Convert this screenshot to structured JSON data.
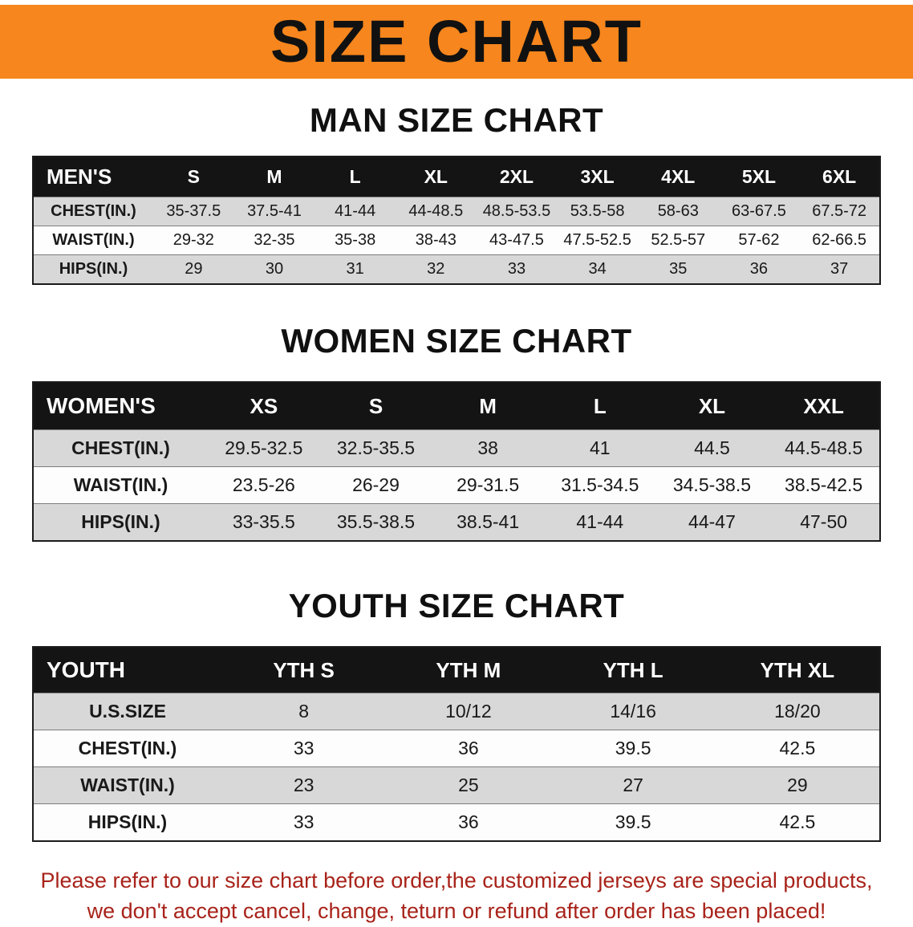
{
  "banner": {
    "title": "SIZE CHART",
    "bg_color": "#f6861d"
  },
  "sections": [
    {
      "id": "men",
      "heading": "MAN SIZE CHART",
      "table": {
        "header": [
          "MEN'S",
          "S",
          "M",
          "L",
          "XL",
          "2XL",
          "3XL",
          "4XL",
          "5XL",
          "6XL"
        ],
        "rows": [
          {
            "label": "CHEST(IN.)",
            "values": [
              "35-37.5",
              "37.5-41",
              "41-44",
              "44-48.5",
              "48.5-53.5",
              "53.5-58",
              "58-63",
              "63-67.5",
              "67.5-72"
            ]
          },
          {
            "label": "WAIST(IN.)",
            "values": [
              "29-32",
              "32-35",
              "35-38",
              "38-43",
              "43-47.5",
              "47.5-52.5",
              "52.5-57",
              "57-62",
              "62-66.5"
            ]
          },
          {
            "label": "HIPS(IN.)",
            "values": [
              "29",
              "30",
              "31",
              "32",
              "33",
              "34",
              "35",
              "36",
              "37"
            ]
          }
        ]
      }
    },
    {
      "id": "women",
      "heading": "WOMEN SIZE CHART",
      "table": {
        "header": [
          "WOMEN'S",
          "XS",
          "S",
          "M",
          "L",
          "XL",
          "XXL"
        ],
        "rows": [
          {
            "label": "CHEST(IN.)",
            "values": [
              "29.5-32.5",
              "32.5-35.5",
              "38",
              "41",
              "44.5",
              "44.5-48.5"
            ]
          },
          {
            "label": "WAIST(IN.)",
            "values": [
              "23.5-26",
              "26-29",
              "29-31.5",
              "31.5-34.5",
              "34.5-38.5",
              "38.5-42.5"
            ]
          },
          {
            "label": "HIPS(IN.)",
            "values": [
              "33-35.5",
              "35.5-38.5",
              "38.5-41",
              "41-44",
              "44-47",
              "47-50"
            ]
          }
        ]
      }
    },
    {
      "id": "youth",
      "heading": "YOUTH SIZE CHART",
      "table": {
        "header": [
          "YOUTH",
          "YTH S",
          "YTH M",
          "YTH L",
          "YTH XL"
        ],
        "rows": [
          {
            "label": "U.S.SIZE",
            "values": [
              "8",
              "10/12",
              "14/16",
              "18/20"
            ]
          },
          {
            "label": "CHEST(IN.)",
            "values": [
              "33",
              "36",
              "39.5",
              "42.5"
            ]
          },
          {
            "label": "WAIST(IN.)",
            "values": [
              "23",
              "25",
              "27",
              "29"
            ]
          },
          {
            "label": "HIPS(IN.)",
            "values": [
              "33",
              "36",
              "39.5",
              "42.5"
            ]
          }
        ]
      }
    }
  ],
  "footer": {
    "lines": [
      "Please refer to our size chart before order,the customized jerseys are special products,",
      "we don't accept cancel, change, teturn or refund after order has been placed!"
    ],
    "text_color": "#a8231a"
  }
}
